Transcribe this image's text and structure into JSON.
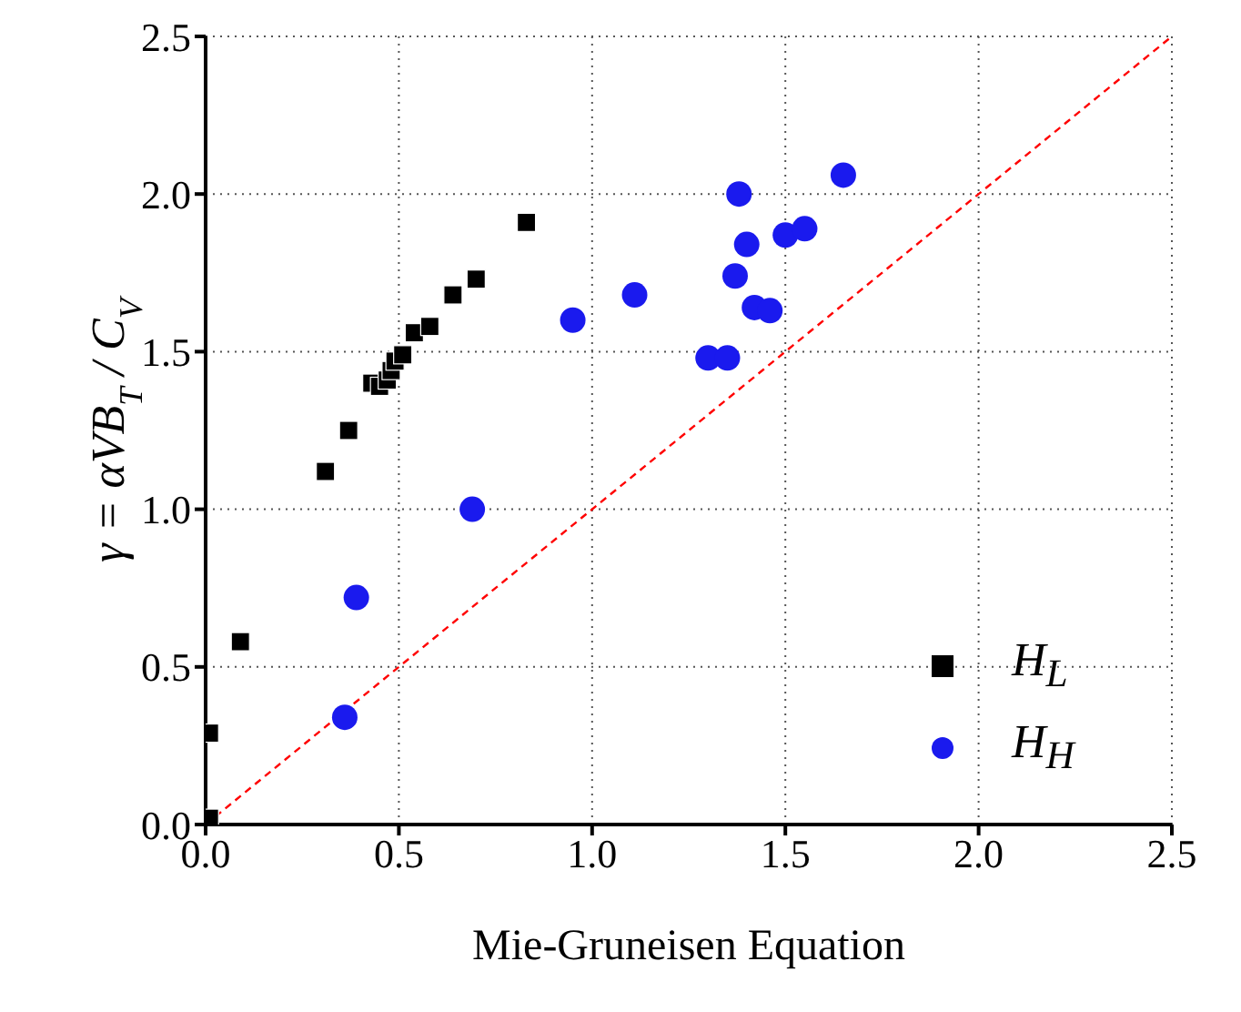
{
  "chart_data": {
    "type": "scatter",
    "xlabel": "Mie-Gruneisen Equation",
    "ylabel": "γ = αVB$_{T}$ / C$_{V}$",
    "xlim": [
      0,
      2.5
    ],
    "ylim": [
      0,
      2.5
    ],
    "xticks": [
      {
        "value": 0,
        "label": "0.0"
      },
      {
        "value": 0.5,
        "label": "0.5"
      },
      {
        "value": 1,
        "label": "1.0"
      },
      {
        "value": 1.5,
        "label": "1.5"
      },
      {
        "value": 2,
        "label": "2.0"
      },
      {
        "value": 2.5,
        "label": "2.5"
      }
    ],
    "yticks": [
      {
        "value": 0,
        "label": "0.0"
      },
      {
        "value": 0.5,
        "label": "0.5"
      },
      {
        "value": 1,
        "label": "1.0"
      },
      {
        "value": 1.5,
        "label": "1.5"
      },
      {
        "value": 2,
        "label": "2.0"
      },
      {
        "value": 2.5,
        "label": "2.5"
      }
    ],
    "grid": true,
    "legend": "bottom right",
    "series": [
      {
        "name": "H$_{L}$",
        "color": "#000000",
        "marker": "square",
        "x": [
          0.01,
          0.01,
          0.09,
          0.31,
          0.37,
          0.43,
          0.45,
          0.47,
          0.48,
          0.49,
          0.51,
          0.54,
          0.58,
          0.64,
          0.7,
          0.83
        ],
        "values": [
          0.02,
          0.29,
          0.58,
          1.12,
          1.25,
          1.4,
          1.39,
          1.41,
          1.44,
          1.47,
          1.49,
          1.56,
          1.58,
          1.68,
          1.73,
          1.91
        ]
      },
      {
        "name": "H$_{H}$",
        "color": "#1a1aee",
        "marker": "circle",
        "x": [
          0.36,
          0.39,
          0.69,
          0.95,
          1.11,
          1.3,
          1.35,
          1.37,
          1.38,
          1.4,
          1.42,
          1.46,
          1.5,
          1.55,
          1.65
        ],
        "values": [
          0.34,
          0.72,
          1.0,
          1.6,
          1.68,
          1.48,
          1.48,
          1.74,
          2.0,
          1.84,
          1.64,
          1.63,
          1.87,
          1.89,
          2.06
        ]
      },
      {
        "type": "line",
        "color": "#ff0000",
        "line_style": "dashed",
        "marker": "none",
        "x": [
          0,
          2.5
        ],
        "values": [
          0,
          2.5
        ]
      }
    ]
  }
}
